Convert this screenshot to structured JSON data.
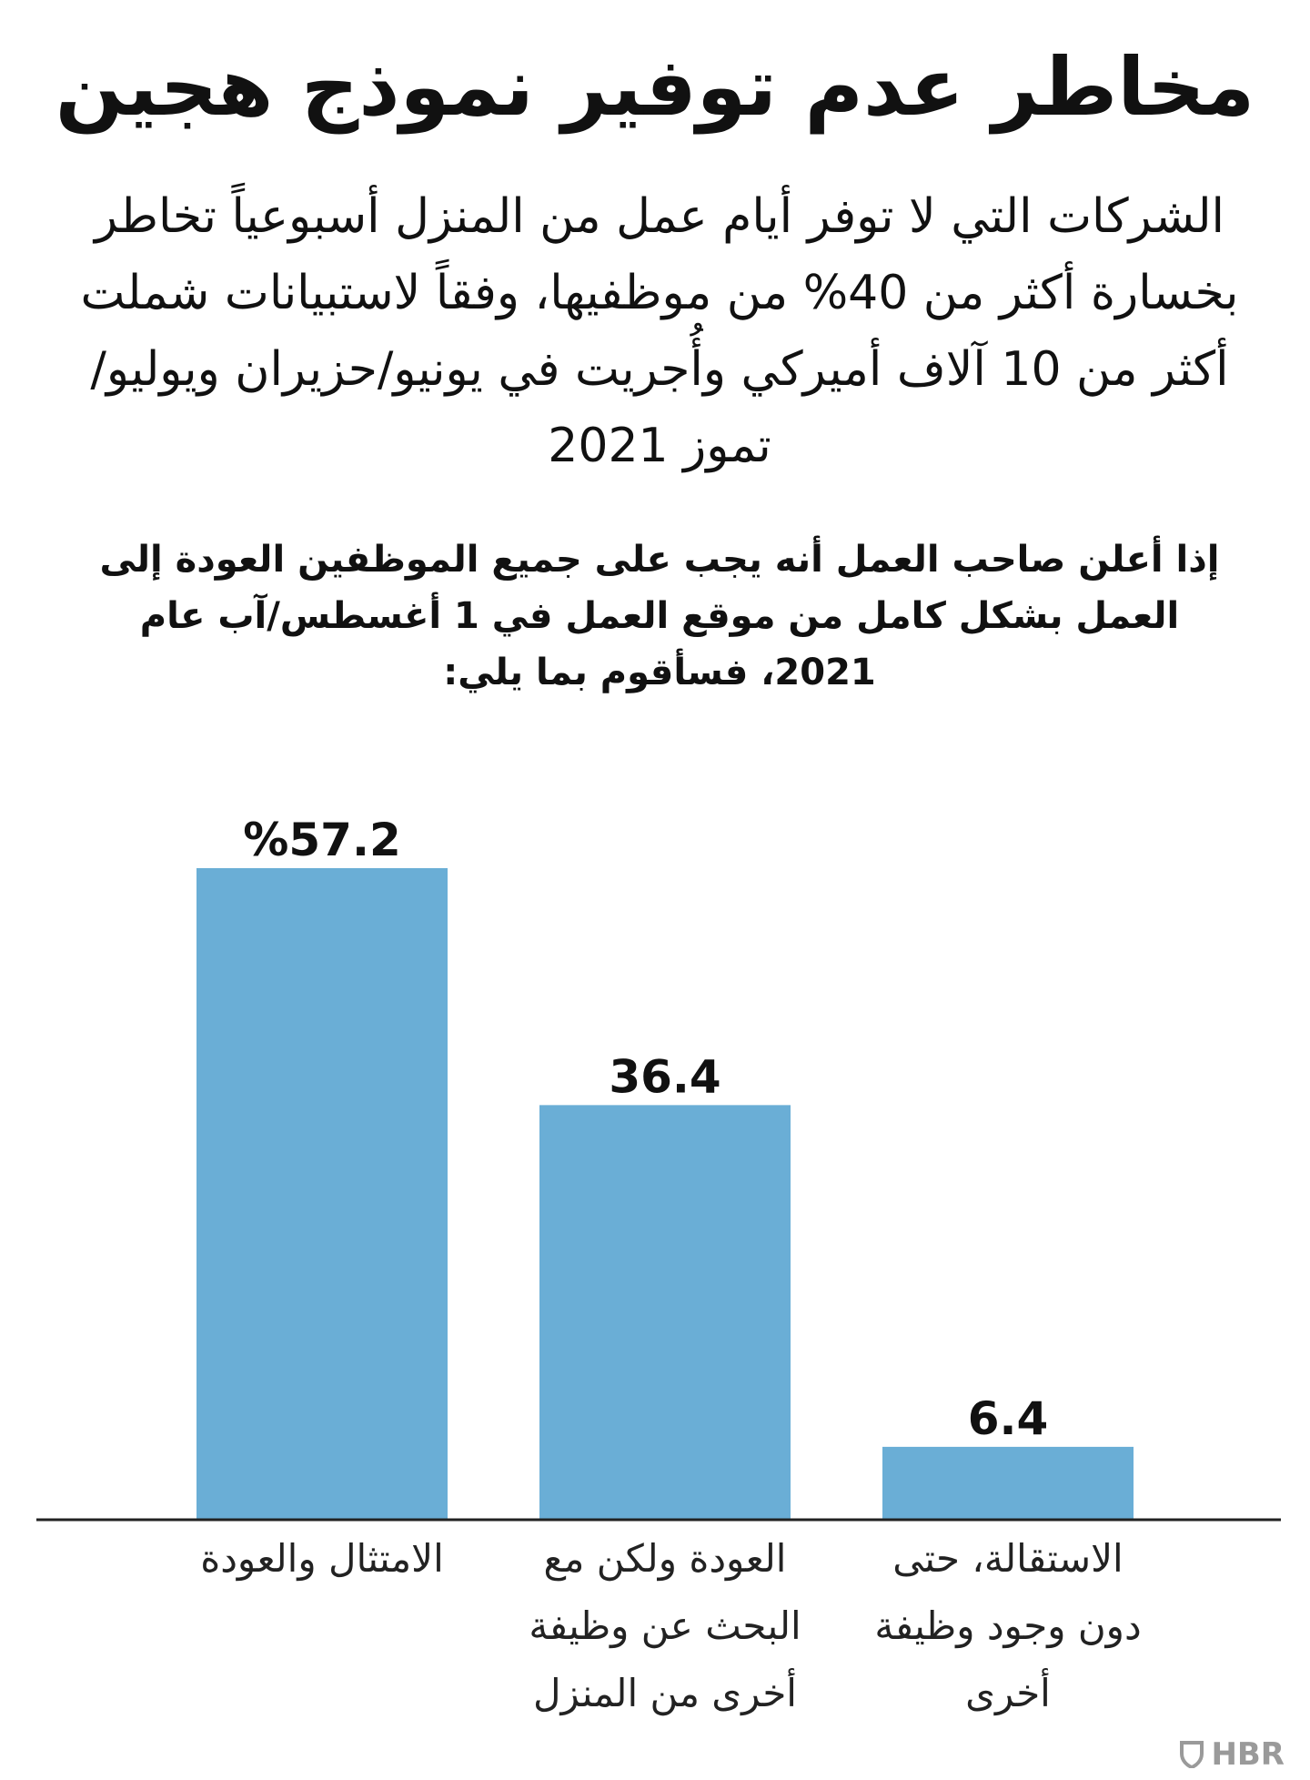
{
  "title": "مخاطر عدم توفير نموذج هجين",
  "subtitle": "الشركات التي لا توفر أيام عمل من المنزل أسبوعياً تخاطر بخسارة أكثر من 40% من موظفيها، وفقاً لاستبيانات شملت أكثر من 10 آلاف أميركي وأُجريت في يونيو/حزيران ويوليو/تموز 2021",
  "question": "إذا أعلن صاحب العمل أنه يجب على جميع الموظفين العودة إلى العمل بشكل كامل من موقع العمل في 1 أغسطس/آب عام 2021، فسأقوم بما يلي:",
  "logo": {
    "text": "HBR",
    "icon": "hbr-shield-icon"
  },
  "chart_data": {
    "type": "bar",
    "categories": [
      "الامتثال والعودة",
      "العودة ولكن مع البحث عن وظيفة أخرى من المنزل",
      "الاستقالة، حتى دون وجود وظيفة أخرى"
    ],
    "values": [
      57.2,
      36.4,
      6.4
    ],
    "value_labels": [
      "%57.2",
      "36.4",
      "6.4"
    ],
    "unit": "%",
    "ylim": [
      0,
      60
    ],
    "grid": false,
    "bar_color": "#6aaed6",
    "baseline_color": "#222222"
  }
}
